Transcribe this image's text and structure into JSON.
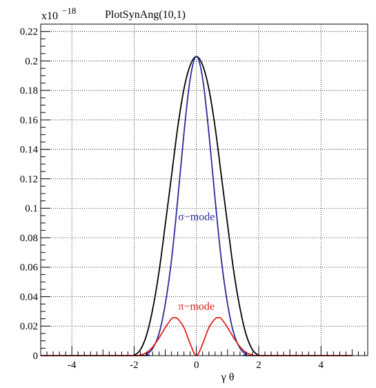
{
  "chart_data": {
    "type": "line",
    "title": "PlotSynAng(10,1)",
    "xlabel": "γ θ",
    "ylabel": "",
    "y_exponent_base": "x10",
    "y_exponent_power": "−18",
    "xlim": [
      -5.0,
      5.5
    ],
    "ylim": [
      0,
      0.225
    ],
    "grid": true,
    "x_ticks": [
      -4,
      -2,
      0,
      2,
      4
    ],
    "x_tick_labels": [
      "-4",
      "-2",
      "0",
      "2",
      "4"
    ],
    "y_ticks": [
      0,
      0.02,
      0.04,
      0.06,
      0.08,
      0.1,
      0.12,
      0.14,
      0.16,
      0.18,
      0.2,
      0.22
    ],
    "y_tick_labels": [
      "0",
      "0.02",
      "0.04",
      "0.06",
      "0.08",
      "0.1",
      "0.12",
      "0.14",
      "0.16",
      "0.18",
      "0.2",
      "0.22"
    ],
    "annotations": [
      {
        "text": "σ−mode",
        "x": 0.0,
        "y": 0.092,
        "color": "#2a2a9c"
      },
      {
        "text": "π−mode",
        "x": 0.0,
        "y": 0.031,
        "color": "#e0201a"
      }
    ],
    "series": [
      {
        "color": "#000000",
        "x": [
          -5.0,
          -2.2,
          -2.0,
          -1.8,
          -1.6,
          -1.4,
          -1.2,
          -1.0,
          -0.8,
          -0.6,
          -0.4,
          -0.2,
          0.0,
          0.2,
          0.4,
          0.6,
          0.8,
          1.0,
          1.2,
          1.4,
          1.6,
          1.8,
          2.0,
          2.2,
          5.0
        ],
        "y": [
          0.0,
          0.0,
          0.0003,
          0.004,
          0.014,
          0.032,
          0.057,
          0.089,
          0.122,
          0.155,
          0.181,
          0.197,
          0.203,
          0.197,
          0.181,
          0.155,
          0.122,
          0.089,
          0.057,
          0.032,
          0.014,
          0.004,
          0.0003,
          0.0,
          0.0
        ]
      },
      {
        "color": "#2a2a9c",
        "x": [
          -5.0,
          -1.8,
          -1.6,
          -1.4,
          -1.2,
          -1.0,
          -0.8,
          -0.6,
          -0.4,
          -0.2,
          0.0,
          0.2,
          0.4,
          0.6,
          0.8,
          1.0,
          1.2,
          1.4,
          1.6,
          1.8,
          5.0
        ],
        "y": [
          0.0,
          0.0,
          0.001,
          0.005,
          0.015,
          0.035,
          0.065,
          0.106,
          0.151,
          0.188,
          0.203,
          0.188,
          0.151,
          0.106,
          0.065,
          0.035,
          0.015,
          0.005,
          0.001,
          0.0,
          0.0
        ]
      },
      {
        "color": "#e0201a",
        "x": [
          -5.0,
          -2.0,
          -1.8,
          -1.6,
          -1.4,
          -1.2,
          -1.0,
          -0.8,
          -0.7,
          -0.6,
          -0.4,
          -0.2,
          0.0,
          0.2,
          0.4,
          0.6,
          0.7,
          0.8,
          1.0,
          1.2,
          1.4,
          1.6,
          1.8,
          2.0,
          5.0
        ],
        "y": [
          0.0,
          0.0,
          0.0005,
          0.002,
          0.006,
          0.012,
          0.019,
          0.025,
          0.0257,
          0.025,
          0.019,
          0.008,
          0.0,
          0.008,
          0.019,
          0.025,
          0.0257,
          0.025,
          0.019,
          0.012,
          0.006,
          0.002,
          0.0005,
          0.0,
          0.0
        ]
      }
    ]
  }
}
